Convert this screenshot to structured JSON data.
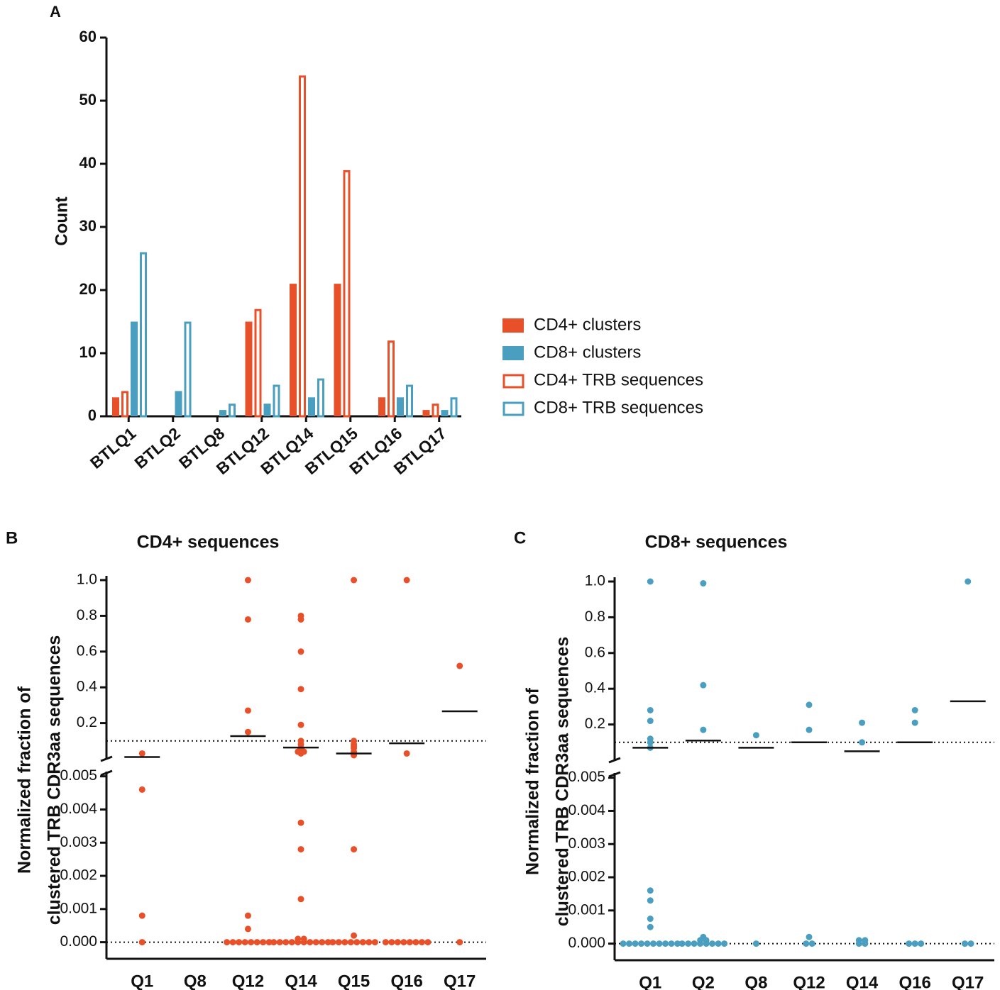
{
  "chart_data": [
    {
      "type": "bar",
      "panel": "A",
      "ylabel": "Count",
      "categories": [
        "BTLQ1",
        "BTLQ2",
        "BTLQ8",
        "BTLQ12",
        "BTLQ14",
        "BTLQ15",
        "BTLQ16",
        "BTLQ17"
      ],
      "series": [
        {
          "name": "CD4+ clusters",
          "color": "#e8502a",
          "fill": "solid",
          "values": [
            3,
            0,
            0,
            15,
            21,
            21,
            3,
            1
          ]
        },
        {
          "name": "CD8+ clusters",
          "color": "#4a9fc1",
          "fill": "solid",
          "values": [
            15,
            4,
            1,
            2,
            3,
            0,
            3,
            1
          ]
        },
        {
          "name": "CD4+ TRB sequences",
          "color": "#e8502a",
          "fill": "outline",
          "values": [
            4,
            0,
            0,
            17,
            54,
            39,
            12,
            2
          ]
        },
        {
          "name": "CD8+ TRB sequences",
          "color": "#4a9fc1",
          "fill": "outline",
          "values": [
            26,
            15,
            2,
            5,
            6,
            0,
            5,
            3
          ]
        }
      ],
      "ylim": [
        0,
        60
      ],
      "yticks": [
        0,
        10,
        20,
        30,
        40,
        50,
        60
      ],
      "legend": "right"
    },
    {
      "type": "strip",
      "panel": "B",
      "title": "CD4+ sequences",
      "color": "#e8502a",
      "ylabel": [
        "Normalized fraction of",
        "clustered TRB CDR3aa sequences"
      ],
      "categories": [
        "Q1",
        "Q8",
        "Q12",
        "Q14",
        "Q15",
        "Q16",
        "Q17"
      ],
      "points": [
        [
          0.03,
          0.0046,
          0.0008,
          0
        ],
        [],
        [
          1.0,
          0.78,
          0.27,
          0.15,
          0.0008,
          0.0004,
          0,
          0,
          0,
          0,
          0,
          0,
          0,
          0
        ],
        [
          0.8,
          0.78,
          0.6,
          0.39,
          0.19,
          0.1,
          0.08,
          0.06,
          0.05,
          0.04,
          0.04,
          0.03,
          0.0036,
          0.0028,
          0.0013,
          0.0001,
          0.0001,
          0,
          0,
          0,
          0,
          0,
          0,
          0,
          0,
          0,
          0
        ],
        [
          1.0,
          0.1,
          0.08,
          0.07,
          0.06,
          0.04,
          0.02,
          0.0028,
          0.0002,
          0,
          0,
          0,
          0,
          0,
          0,
          0,
          0
        ],
        [
          1.0,
          0.03,
          0,
          0,
          0,
          0,
          0,
          0,
          0,
          0
        ],
        [
          0.52,
          0
        ]
      ],
      "medians": [
        0.01,
        null,
        0.127,
        0.063,
        0.03,
        0.087,
        0.266
      ],
      "segments": [
        {
          "ylim": [
            -0.0005,
            0.0051
          ],
          "ref_line": 0,
          "yticks": [
            {
              "value": 0,
              "label": "0.000"
            },
            {
              "value": 0.001,
              "label": "0.001"
            },
            {
              "value": 0.002,
              "label": "0.002"
            },
            {
              "value": 0.003,
              "label": "0.003"
            },
            {
              "value": 0.004,
              "label": "0.004"
            },
            {
              "value": 0.005,
              "label": "0.005"
            }
          ]
        },
        {
          "ylim": [
            0,
            1.0
          ],
          "ref_line": 0.1,
          "yticks": [
            0.2,
            0.4,
            0.6,
            0.8,
            {
              "value": 1.0,
              "label": "1.0"
            }
          ]
        }
      ]
    },
    {
      "type": "strip",
      "panel": "C",
      "title": "CD8+ sequences",
      "color": "#4a9fc1",
      "ylabel": [
        "Normalized fraction of",
        "clustered TRB CDR3aa sequences"
      ],
      "categories": [
        "Q1",
        "Q2",
        "Q8",
        "Q12",
        "Q14",
        "Q16",
        "Q17"
      ],
      "points": [
        [
          1.0,
          0.28,
          0.22,
          0.12,
          0.1,
          0.07,
          0.0016,
          0.0013,
          0.00075,
          0.0005,
          0,
          0,
          0,
          0,
          0,
          0,
          0,
          0,
          0,
          0
        ],
        [
          0.99,
          0.42,
          0.17,
          0.0002,
          0.0001,
          0.0001,
          0,
          0,
          0,
          0,
          0,
          0,
          0,
          0
        ],
        [
          0.14,
          0
        ],
        [
          0.31,
          0.17,
          0.0002,
          0,
          0
        ],
        [
          0.21,
          0.1,
          0.0001,
          0,
          0,
          0.0001
        ],
        [
          0.28,
          0.21,
          0,
          0,
          0
        ],
        [
          1.0,
          0,
          0
        ]
      ],
      "medians": [
        0.07,
        0.11,
        0.07,
        0.1,
        0.05,
        0.1,
        0.33
      ],
      "segments": [
        {
          "ylim": [
            -0.0005,
            0.0051
          ],
          "ref_line": 0,
          "yticks": [
            {
              "value": 0,
              "label": "0.000"
            },
            {
              "value": 0.001,
              "label": "0.001"
            },
            {
              "value": 0.002,
              "label": "0.002"
            },
            {
              "value": 0.003,
              "label": "0.003"
            },
            {
              "value": 0.004,
              "label": "0.004"
            },
            {
              "value": 0.005,
              "label": "0.005"
            }
          ]
        },
        {
          "ylim": [
            0,
            1.0
          ],
          "ref_line": 0.1,
          "yticks": [
            0.2,
            0.4,
            0.6,
            0.8,
            {
              "value": 1.0,
              "label": "1.0"
            }
          ]
        }
      ]
    }
  ]
}
